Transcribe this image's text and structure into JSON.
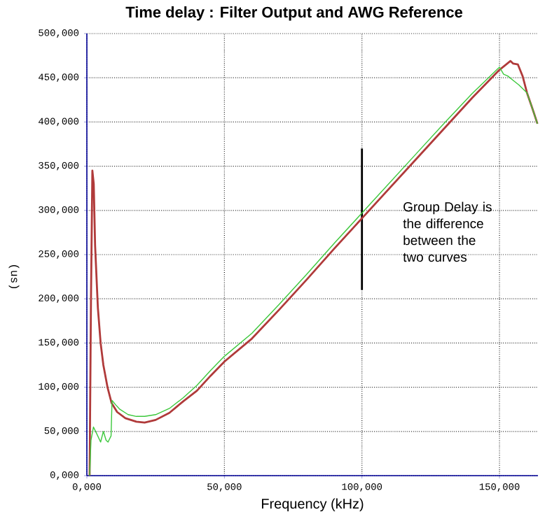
{
  "chart_data": {
    "type": "line",
    "title": "Time delay : Filter Output and AWG Reference",
    "xlabel": "Frequency (kHz)",
    "ylabel": "(us)",
    "xlim": [
      0,
      164
    ],
    "ylim": [
      0,
      500
    ],
    "xticks": [
      {
        "value": 0,
        "label": "0,000"
      },
      {
        "value": 50,
        "label": "50,000"
      },
      {
        "value": 100,
        "label": "100,000"
      },
      {
        "value": 150,
        "label": "150,000"
      }
    ],
    "yticks": [
      {
        "value": 0,
        "label": "0,000"
      },
      {
        "value": 50,
        "label": "50,000"
      },
      {
        "value": 100,
        "label": "100,000"
      },
      {
        "value": 150,
        "label": "150,000"
      },
      {
        "value": 200,
        "label": "200,000"
      },
      {
        "value": 250,
        "label": "250,000"
      },
      {
        "value": 300,
        "label": "300,000"
      },
      {
        "value": 350,
        "label": "350,000"
      },
      {
        "value": 400,
        "label": "400,000"
      },
      {
        "value": 450,
        "label": "450,000"
      },
      {
        "value": 500,
        "label": "500,000"
      }
    ],
    "grid": true,
    "marker": "none",
    "line_style": "solid",
    "annotations": [
      "Group Delay is the difference between the two curves"
    ],
    "series": [
      {
        "color": "#000000",
        "x": [
          100,
          100
        ],
        "values": [
          210,
          370
        ]
      },
      {
        "color": "#b03a3a",
        "x": [
          1,
          1.5,
          2,
          2.5,
          3,
          4,
          5,
          6,
          7.5,
          9,
          11,
          14,
          18,
          21,
          25,
          30,
          35,
          40,
          45,
          50,
          60,
          70,
          80,
          90,
          100,
          110,
          120,
          130,
          140,
          150,
          152,
          154,
          155,
          156.7,
          158.4,
          160,
          162,
          163.8
        ],
        "values": [
          0,
          200,
          345,
          330,
          260,
          190,
          150,
          125,
          100,
          82,
          72,
          65,
          61,
          60,
          63,
          71,
          84,
          96,
          113,
          129,
          155,
          188,
          222,
          257,
          291,
          325,
          359,
          393,
          427,
          459,
          464,
          469,
          466,
          465,
          452,
          433,
          415,
          398
        ]
      },
      {
        "color": "#3cc83c",
        "x": [
          1,
          1.5,
          2.4,
          3.5,
          5,
          6,
          7,
          7.7,
          8.8,
          9.15,
          10.5,
          12,
          15,
          18,
          21,
          25,
          30,
          35,
          40,
          45,
          50,
          60,
          70,
          80,
          90,
          100,
          110,
          120,
          130,
          140,
          150,
          151.5,
          153,
          155,
          157,
          160,
          162,
          163.8
        ],
        "values": [
          0,
          40,
          55,
          48,
          38,
          50,
          40,
          38,
          45,
          85,
          80,
          75,
          69,
          67,
          67,
          69,
          76,
          88,
          102,
          119,
          135,
          161,
          194,
          228,
          263,
          297,
          331,
          365,
          399,
          432,
          462,
          454,
          452,
          447,
          442,
          433,
          415,
          398
        ]
      }
    ]
  }
}
